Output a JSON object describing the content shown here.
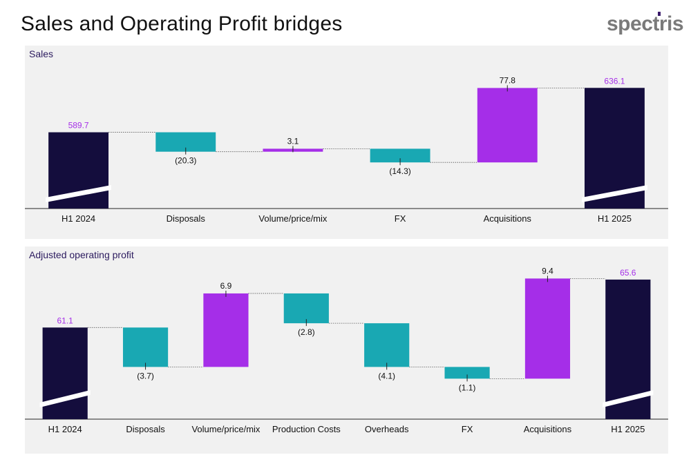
{
  "header": {
    "title": "Sales and Operating Profit bridges",
    "logo_text": "spectris"
  },
  "colors": {
    "total": "#140d3d",
    "decrease": "#19a8b3",
    "increase": "#a52ee8",
    "total_label": "#a52ee8",
    "panel_bg": "#f1f1f1"
  },
  "chart_data": [
    {
      "type": "bar",
      "subtype": "waterfall",
      "title": "Sales",
      "categories": [
        "H1 2024",
        "Disposals",
        "Volume/price/mix",
        "FX",
        "Acquisitions",
        "H1 2025"
      ],
      "values": [
        589.7,
        -20.3,
        3.1,
        -14.3,
        77.8,
        636.1
      ],
      "kinds": [
        "total",
        "decrease",
        "increase",
        "decrease",
        "increase",
        "total"
      ],
      "labels": [
        "589.7",
        "(20.3)",
        "3.1",
        "(14.3)",
        "77.8",
        "636.1"
      ],
      "axis_break": true,
      "ylim": [
        510,
        650
      ]
    },
    {
      "type": "bar",
      "subtype": "waterfall",
      "title": "Adjusted operating profit",
      "categories": [
        "H1 2024",
        "Disposals",
        "Volume/price/mix",
        "Production Costs",
        "Overheads",
        "FX",
        "Acquisitions",
        "H1 2025"
      ],
      "values": [
        61.1,
        -3.7,
        6.9,
        -2.8,
        -4.1,
        -1.1,
        9.4,
        65.6
      ],
      "kinds": [
        "total",
        "decrease",
        "increase",
        "decrease",
        "decrease",
        "decrease",
        "increase",
        "total"
      ],
      "labels": [
        "61.1",
        "(3.7)",
        "6.9",
        "(2.8)",
        "(4.1)",
        "(1.1)",
        "9.4",
        "65.6"
      ],
      "axis_break": true,
      "ylim": [
        52.5,
        66.5
      ]
    }
  ]
}
